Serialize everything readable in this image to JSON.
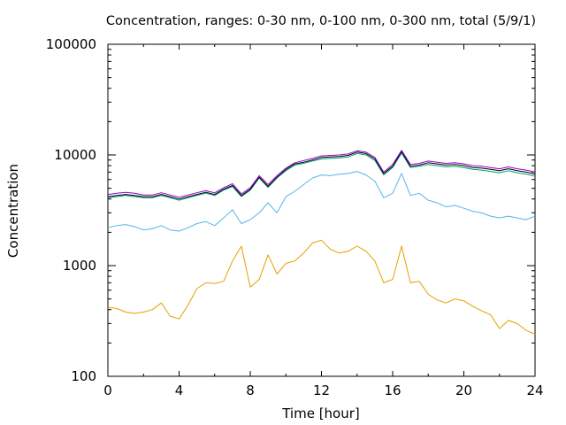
{
  "chart_data": {
    "type": "line",
    "title": "Concentration, ranges: 0-30 nm, 0-100 nm, 0-300 nm, total (5/9/1)",
    "xlabel": "Time [hour]",
    "ylabel": "Concentration",
    "xlim": [
      0,
      24
    ],
    "ylim": [
      100,
      100000
    ],
    "yscale": "log",
    "grid": false,
    "legend": "none",
    "x_ticks": [
      0,
      4,
      8,
      12,
      16,
      20,
      24
    ],
    "x_tick_labels": [
      "0",
      "4",
      "8",
      "12",
      "16",
      "20",
      "24"
    ],
    "y_ticks": [
      100,
      1000,
      10000,
      100000
    ],
    "y_tick_labels": [
      "100",
      "1000",
      "10000",
      "100000"
    ],
    "x": [
      0,
      0.5,
      1,
      1.5,
      2,
      2.5,
      3,
      3.5,
      4,
      4.5,
      5,
      5.5,
      6,
      6.5,
      7,
      7.5,
      8,
      8.5,
      9,
      9.5,
      10,
      10.5,
      11,
      11.5,
      12,
      12.5,
      13,
      13.5,
      14,
      14.5,
      15,
      15.5,
      16,
      16.5,
      17,
      17.5,
      18,
      18.5,
      19,
      19.5,
      20,
      20.5,
      21,
      21.5,
      22,
      22.5,
      23,
      23.5,
      24
    ],
    "series": [
      {
        "color": "#e69f00",
        "values": [
          420,
          410,
          380,
          370,
          380,
          400,
          460,
          350,
          330,
          440,
          620,
          700,
          690,
          720,
          1100,
          1500,
          640,
          750,
          1250,
          840,
          1050,
          1100,
          1300,
          1600,
          1700,
          1400,
          1300,
          1350,
          1500,
          1350,
          1100,
          700,
          750,
          1500,
          700,
          720,
          550,
          490,
          460,
          500,
          480,
          430,
          390,
          360,
          270,
          320,
          300,
          260,
          240
        ]
      },
      {
        "color": "#56b4e9",
        "values": [
          2200,
          2300,
          2350,
          2250,
          2100,
          2150,
          2300,
          2100,
          2050,
          2200,
          2400,
          2500,
          2300,
          2700,
          3200,
          2400,
          2600,
          3000,
          3700,
          3000,
          4200,
          4700,
          5400,
          6200,
          6600,
          6500,
          6700,
          6800,
          7100,
          6600,
          5800,
          4100,
          4500,
          6800,
          4300,
          4500,
          3900,
          3700,
          3400,
          3500,
          3300,
          3100,
          3000,
          2800,
          2700,
          2800,
          2700,
          2600,
          2800
        ]
      },
      {
        "color": "#009e73",
        "values": [
          4100,
          4200,
          4300,
          4200,
          4100,
          4100,
          4300,
          4100,
          3900,
          4100,
          4300,
          4500,
          4300,
          4800,
          5200,
          4200,
          4800,
          6200,
          5100,
          6200,
          7200,
          8100,
          8400,
          8800,
          9200,
          9300,
          9400,
          9600,
          10300,
          10000,
          8900,
          6600,
          7700,
          10400,
          7700,
          7900,
          8200,
          8000,
          7800,
          7900,
          7700,
          7400,
          7300,
          7100,
          6900,
          7200,
          6900,
          6700,
          6400
        ]
      },
      {
        "color": "#000000",
        "values": [
          4200,
          4300,
          4400,
          4300,
          4200,
          4200,
          4400,
          4200,
          4000,
          4200,
          4400,
          4600,
          4400,
          4900,
          5300,
          4300,
          4900,
          6300,
          5200,
          6300,
          7400,
          8300,
          8600,
          9000,
          9500,
          9600,
          9700,
          9900,
          10600,
          10300,
          9200,
          6800,
          7900,
          10700,
          7900,
          8100,
          8500,
          8300,
          8100,
          8200,
          8000,
          7700,
          7600,
          7400,
          7200,
          7500,
          7200,
          7000,
          6700
        ]
      },
      {
        "color": "#9400d3",
        "values": [
          4400,
          4500,
          4600,
          4500,
          4350,
          4350,
          4550,
          4350,
          4150,
          4350,
          4550,
          4750,
          4550,
          5050,
          5500,
          4450,
          5050,
          6500,
          5400,
          6500,
          7600,
          8500,
          8900,
          9300,
          9800,
          9900,
          10000,
          10200,
          10900,
          10600,
          9500,
          7000,
          8200,
          11000,
          8200,
          8400,
          8800,
          8600,
          8400,
          8500,
          8300,
          8000,
          7900,
          7700,
          7500,
          7800,
          7500,
          7300,
          7000
        ]
      }
    ]
  }
}
